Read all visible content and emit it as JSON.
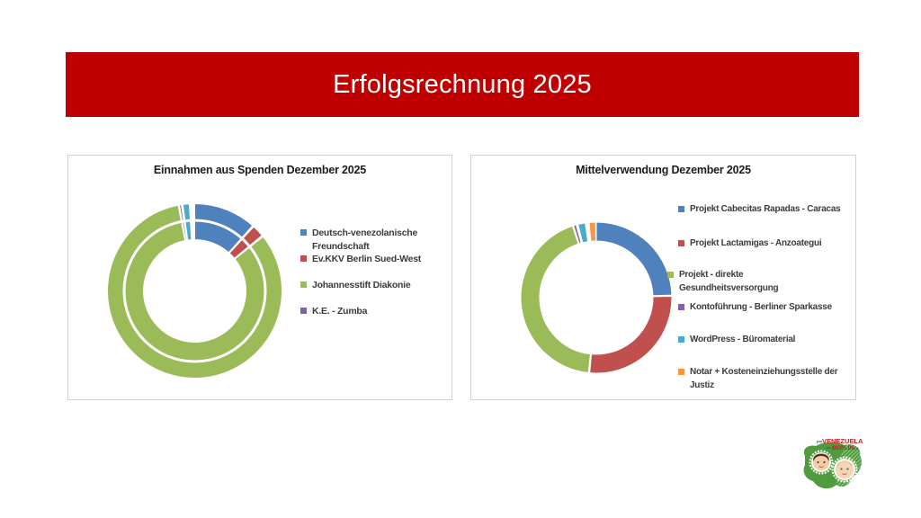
{
  "slide": {
    "title": "Erfolgsrechnung 2025",
    "banner_color": "#C00000",
    "background_color": "#FFFFFF"
  },
  "palette": {
    "blue": "#4F81BD",
    "red": "#C0504D",
    "green": "#9BBB59",
    "purple": "#8064A2",
    "cyan": "#4BACC6",
    "orange": "#F79646"
  },
  "chart_data": [
    {
      "type": "pie",
      "subtype": "donut",
      "title": "Einnahmen aus Spenden Dezember 2025",
      "legend_position": "right",
      "double_ring": true,
      "legend": [
        {
          "label": "Deutsch-venezolanische Freundschaft",
          "color": "#4F81BD"
        },
        {
          "label": "Ev.KKV Berlin Sued-West",
          "color": "#C0504D"
        },
        {
          "label": "Johannesstift Diakonie",
          "color": "#9BBB59"
        },
        {
          "label": "K.E. - Zumba",
          "color": "#8064A2"
        }
      ],
      "segments": [
        {
          "label": "Deutsch-venezolanische Freundschaft",
          "color": "#4F81BD",
          "start_deg": 0.0,
          "end_deg": 41.5,
          "approx_pct": 11.5
        },
        {
          "label": "Ev.KKV Berlin Sued-West",
          "color": "#C0504D",
          "start_deg": 42.6,
          "end_deg": 50.5,
          "approx_pct": 2.2
        },
        {
          "label": "Johannesstift Diakonie",
          "color": "#9BBB59",
          "start_deg": 51.6,
          "end_deg": 349.0,
          "approx_pct": 82.6
        },
        {
          "label": "K.E. - Zumba",
          "color": "#8064A2",
          "start_deg": 349.9,
          "end_deg": 351.1,
          "approx_pct": 0.3
        },
        {
          "label": "",
          "color": "#4BACC6",
          "start_deg": 352.2,
          "end_deg": 356.4,
          "approx_pct": 1.2
        }
      ]
    },
    {
      "type": "pie",
      "subtype": "donut",
      "title": "Mittelverwendung Dezember 2025",
      "legend_position": "right",
      "double_ring": false,
      "legend": [
        {
          "label": "Projekt Cabecitas Rapadas - Caracas",
          "color": "#4F81BD"
        },
        {
          "label": "Projekt Lactamigas - Anzoategui",
          "color": "#C0504D"
        },
        {
          "label": "Projekt - direkte Gesundheitsversorgung",
          "color": "#9BBB59"
        },
        {
          "label": "Kontoführung - Berliner Sparkasse",
          "color": "#8064A2"
        },
        {
          "label": "WordPress - Büromaterial",
          "color": "#4BACC6"
        },
        {
          "label": "Notar + Kosteneinziehungsstelle  der Justiz",
          "color": "#F79646"
        }
      ],
      "segments": [
        {
          "label": "Projekt Cabecitas Rapadas - Caracas",
          "color": "#4F81BD",
          "start_deg": 0.0,
          "end_deg": 88.0,
          "approx_pct": 24.4
        },
        {
          "label": "Projekt Lactamigas - Anzoategui",
          "color": "#C0504D",
          "start_deg": 89.0,
          "end_deg": 185.0,
          "approx_pct": 26.7
        },
        {
          "label": "Projekt - direkte Gesundheitsversorgung",
          "color": "#9BBB59",
          "start_deg": 186.0,
          "end_deg": 341.5,
          "approx_pct": 43.2
        },
        {
          "label": "Kontoführung - Berliner Sparkasse",
          "color": "#8064A2",
          "start_deg": 342.5,
          "end_deg": 344.5,
          "approx_pct": 0.6
        },
        {
          "label": "WordPress - Büromaterial",
          "color": "#4BACC6",
          "start_deg": 346.0,
          "end_deg": 351.5,
          "approx_pct": 1.5
        },
        {
          "label": "Notar + Kosteneinziehungsstelle  der Justiz",
          "color": "#F79646",
          "start_deg": 354.5,
          "end_deg": 359.5,
          "approx_pct": 1.4
        }
      ]
    }
  ],
  "logo": {
    "word1_prefix": "por",
    "word1": "VENEZUELA",
    "word2_prefix": "en",
    "word2": "BERLIN",
    "word2_suffix": "e.V."
  }
}
